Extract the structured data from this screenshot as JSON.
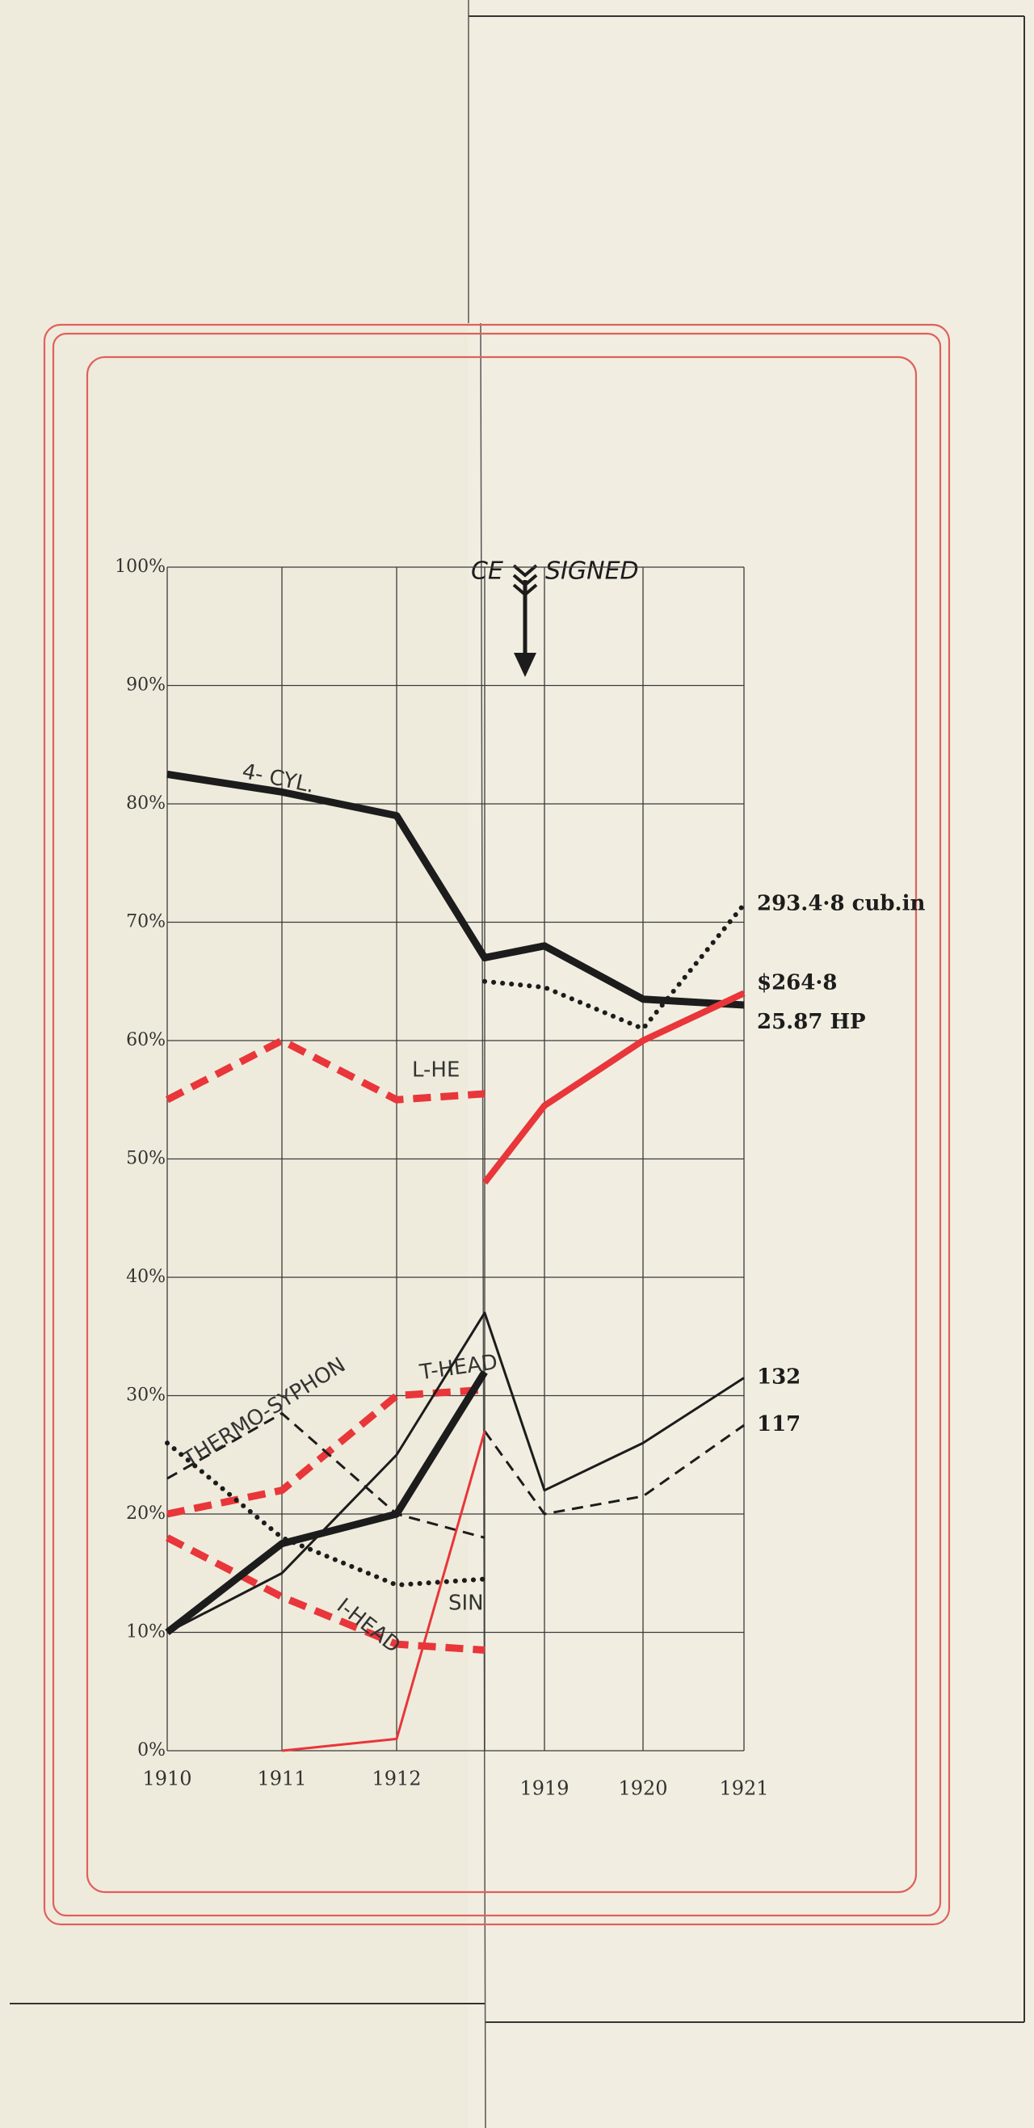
{
  "chart_data": {
    "type": "line",
    "annotations": [
      "CE",
      "SIGNED"
    ],
    "categories": [
      "1910",
      "1911",
      "1912",
      null,
      "1919",
      "1920",
      "1921"
    ],
    "ylim": [
      0,
      100
    ],
    "yticks": [
      {
        "value": 0,
        "label": "0%"
      },
      {
        "value": 10,
        "label": "10%"
      },
      {
        "value": 20,
        "label": "20%"
      },
      {
        "value": 30,
        "label": "30%"
      },
      {
        "value": 40,
        "label": "40%"
      },
      {
        "value": 50,
        "label": "50%"
      },
      {
        "value": 60,
        "label": "60%"
      },
      {
        "value": 70,
        "label": "70%"
      },
      {
        "value": 80,
        "label": "80%"
      },
      {
        "value": 90,
        "label": "90%"
      },
      {
        "value": 100,
        "label": "100%"
      }
    ],
    "grid": true,
    "series": [
      {
        "name": "4- CYL.",
        "color": "#1c1c1c",
        "width": 9,
        "dash": "solid",
        "values": [
          82.5,
          81,
          79,
          67,
          68,
          63.5,
          63
        ]
      },
      {
        "name": "L-HE",
        "color": "#e8363a",
        "width": 9,
        "dash": "dashed",
        "values": [
          55,
          60,
          55,
          55.5,
          null,
          null,
          null
        ]
      },
      {
        "color": "#1c1c1c",
        "width": 6,
        "dash": "dotted",
        "values": [
          null,
          null,
          null,
          65,
          64.5,
          61,
          71.5
        ],
        "end_label": "293.4·8 cub.in"
      },
      {
        "color": "#e8363a",
        "width": 8,
        "dash": "solid",
        "values": [
          null,
          null,
          null,
          48,
          54.5,
          60,
          64
        ],
        "end_label": "$264·8"
      },
      {
        "color": "#1c1c1c",
        "width": 8,
        "dash": "solid",
        "values": [
          null,
          null,
          null,
          null,
          null,
          null,
          null
        ],
        "end_label": "25.87 HP"
      },
      {
        "name": "T-HEAD",
        "color": "#e8363a",
        "width": 9,
        "dash": "dashed",
        "values": [
          20,
          22,
          30,
          30.5,
          null,
          null,
          null
        ]
      },
      {
        "name": "THERMO-SYPHON",
        "color": "#1c1c1c",
        "width": 3,
        "dash": "dashed",
        "values": [
          23,
          28.5,
          20,
          18,
          null,
          null,
          null
        ]
      },
      {
        "color": "#1c1c1c",
        "width": 6,
        "dash": "dotted",
        "values": [
          26,
          18,
          14,
          14.5,
          null,
          null,
          null
        ]
      },
      {
        "name": "I-HEAD",
        "color": "#e8363a",
        "width": 9,
        "dash": "dashed",
        "values": [
          18,
          13,
          9,
          8.5,
          null,
          null,
          null
        ]
      },
      {
        "color": "#1c1c1c",
        "width": 9,
        "dash": "solid",
        "values": [
          10,
          17.5,
          20,
          32,
          null,
          null,
          null
        ]
      },
      {
        "color": "#1c1c1c",
        "width": 3,
        "dash": "solid",
        "values": [
          10,
          15,
          25,
          37,
          22,
          26,
          31.5
        ],
        "end_label": "132"
      },
      {
        "color": "#1c1c1c",
        "width": 3,
        "dash": "dashed",
        "values": [
          null,
          null,
          null,
          27,
          20,
          21.5,
          27.5
        ],
        "end_label": "117"
      },
      {
        "name": "SIN",
        "color": "#e8363a",
        "width": 3,
        "dash": "solid",
        "values": [
          null,
          0,
          1,
          27,
          null,
          null,
          null
        ]
      }
    ]
  }
}
